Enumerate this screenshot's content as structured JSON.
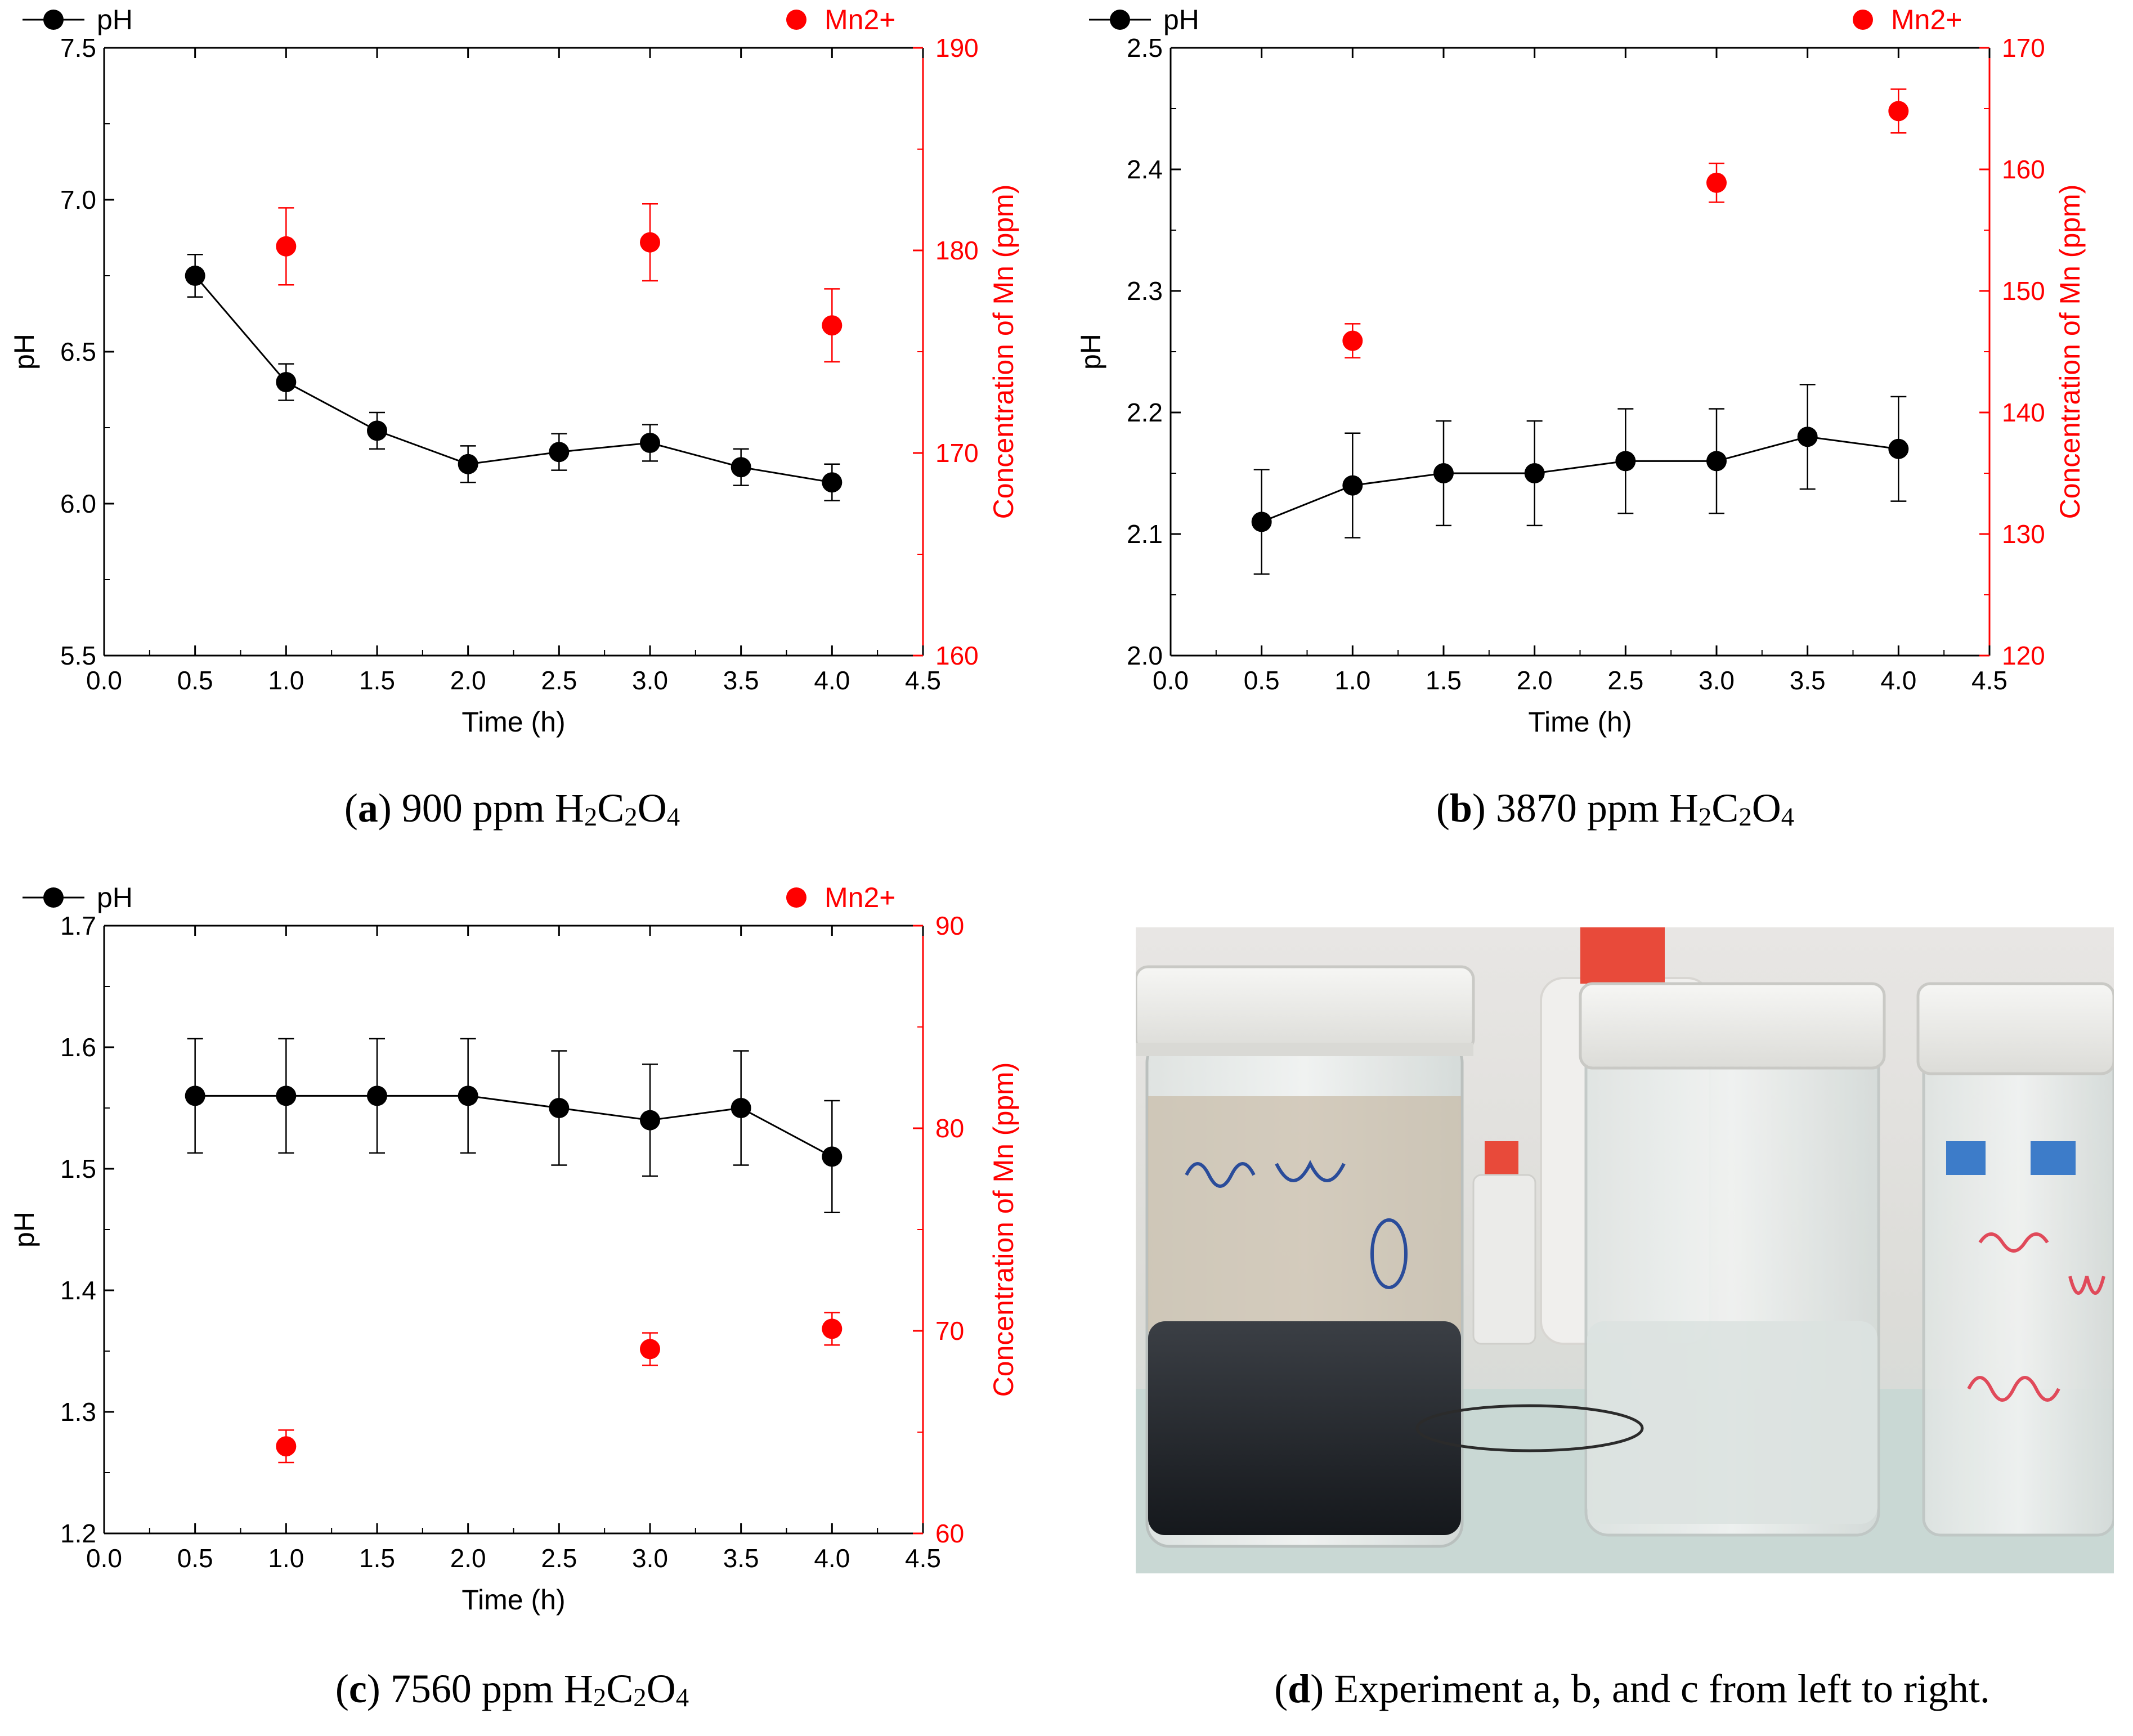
{
  "chart_data": [
    {
      "id": "a",
      "type": "scatter",
      "title": "",
      "xlabel": "Time (h)",
      "ylabel": "pH",
      "y2label": "Concentration of Mn (ppm)",
      "xlim": [
        0.0,
        4.5
      ],
      "ylim": [
        5.5,
        7.5
      ],
      "y2lim": [
        160,
        190
      ],
      "xticks": [
        "0.0",
        "0.5",
        "1.0",
        "1.5",
        "2.0",
        "2.5",
        "3.0",
        "3.5",
        "4.0",
        "4.5"
      ],
      "yticks": [
        "5.5",
        "6.0",
        "6.5",
        "7.0",
        "7.5"
      ],
      "y2ticks": [
        "160",
        "170",
        "180",
        "190"
      ],
      "legend": {
        "ph": "pH",
        "mn": "Mn2+"
      },
      "series": [
        {
          "name": "pH",
          "axis": "left",
          "style": "line-marker",
          "color": "#000000",
          "x": [
            0.5,
            1.0,
            1.5,
            2.0,
            2.5,
            3.0,
            3.5,
            4.0
          ],
          "values": [
            6.75,
            6.4,
            6.24,
            6.13,
            6.17,
            6.2,
            6.12,
            6.07
          ],
          "errors": [
            0.07,
            0.06,
            0.06,
            0.06,
            0.06,
            0.06,
            0.06,
            0.06
          ]
        },
        {
          "name": "Mn2+",
          "axis": "right",
          "style": "marker",
          "color": "#ff0000",
          "x": [
            1.0,
            3.0,
            4.0
          ],
          "values": [
            180.2,
            180.4,
            176.3
          ],
          "errors": [
            1.9,
            1.9,
            1.8
          ]
        }
      ],
      "caption": {
        "letter": "a",
        "text": " 900 ppm ",
        "chem": [
          "H",
          "2",
          "C",
          "2",
          "O",
          "4"
        ]
      }
    },
    {
      "id": "b",
      "type": "scatter",
      "title": "",
      "xlabel": "Time (h)",
      "ylabel": "pH",
      "y2label": "Concentration of Mn (ppm)",
      "xlim": [
        0.0,
        4.5
      ],
      "ylim": [
        2.0,
        2.5
      ],
      "y2lim": [
        120,
        170
      ],
      "xticks": [
        "0.0",
        "0.5",
        "1.0",
        "1.5",
        "2.0",
        "2.5",
        "3.0",
        "3.5",
        "4.0",
        "4.5"
      ],
      "yticks": [
        "2.0",
        "2.1",
        "2.2",
        "2.3",
        "2.4",
        "2.5"
      ],
      "y2ticks": [
        "120",
        "130",
        "140",
        "150",
        "160",
        "170"
      ],
      "legend": {
        "ph": "pH",
        "mn": "Mn2+"
      },
      "series": [
        {
          "name": "pH",
          "axis": "left",
          "style": "line-marker",
          "color": "#000000",
          "x": [
            0.5,
            1.0,
            1.5,
            2.0,
            2.5,
            3.0,
            3.5,
            4.0
          ],
          "values": [
            2.11,
            2.14,
            2.15,
            2.15,
            2.16,
            2.16,
            2.18,
            2.17
          ],
          "errors": [
            0.043,
            0.043,
            0.043,
            0.043,
            0.043,
            0.043,
            0.043,
            0.043
          ]
        },
        {
          "name": "Mn2+",
          "axis": "right",
          "style": "marker",
          "color": "#ff0000",
          "x": [
            1.0,
            3.0,
            4.0
          ],
          "values": [
            145.9,
            158.9,
            164.8
          ],
          "errors": [
            1.4,
            1.6,
            1.8
          ]
        }
      ],
      "caption": {
        "letter": "b",
        "text": " 3870 ppm ",
        "chem": [
          "H",
          "2",
          "C",
          "2",
          "O",
          "4"
        ]
      }
    },
    {
      "id": "c",
      "type": "scatter",
      "title": "",
      "xlabel": "Time (h)",
      "ylabel": "pH",
      "y2label": "Concentration of Mn (ppm)",
      "xlim": [
        0.0,
        4.5
      ],
      "ylim": [
        1.2,
        1.7
      ],
      "y2lim": [
        60,
        90
      ],
      "xticks": [
        "0.0",
        "0.5",
        "1.0",
        "1.5",
        "2.0",
        "2.5",
        "3.0",
        "3.5",
        "4.0",
        "4.5"
      ],
      "yticks": [
        "1.2",
        "1.3",
        "1.4",
        "1.5",
        "1.6",
        "1.7"
      ],
      "y2ticks": [
        "60",
        "70",
        "80",
        "90"
      ],
      "legend": {
        "ph": "pH",
        "mn": "Mn2+"
      },
      "series": [
        {
          "name": "pH",
          "axis": "left",
          "style": "line-marker",
          "color": "#000000",
          "x": [
            0.5,
            1.0,
            1.5,
            2.0,
            2.5,
            3.0,
            3.5,
            4.0
          ],
          "values": [
            1.56,
            1.56,
            1.56,
            1.56,
            1.55,
            1.54,
            1.55,
            1.51
          ],
          "errors": [
            0.047,
            0.047,
            0.047,
            0.047,
            0.047,
            0.046,
            0.047,
            0.046
          ]
        },
        {
          "name": "Mn2+",
          "axis": "right",
          "style": "marker",
          "color": "#ff0000",
          "x": [
            1.0,
            3.0,
            4.0
          ],
          "values": [
            64.3,
            69.1,
            70.1
          ],
          "errors": [
            0.8,
            0.8,
            0.8
          ]
        }
      ],
      "caption": {
        "letter": "c",
        "text": " 7560 ppm ",
        "chem": [
          "H",
          "2",
          "C",
          "2",
          "O",
          "4"
        ]
      }
    }
  ],
  "photo_caption": {
    "letter": "d",
    "text": " Experiment a, b, and c from left to right."
  }
}
